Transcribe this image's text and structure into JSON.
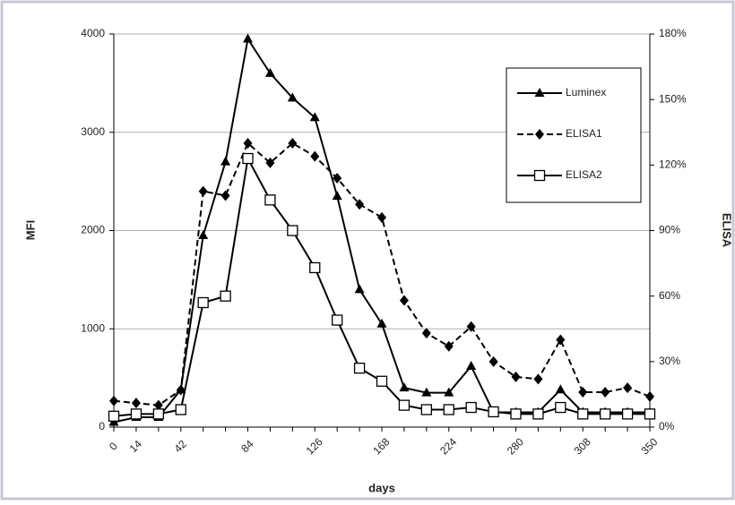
{
  "chart_data": {
    "type": "line",
    "x_label": "days",
    "y_label": "MFI",
    "y2_label": "ELISA",
    "categories": [
      "0",
      "14",
      null,
      "42",
      null,
      null,
      "84",
      null,
      null,
      "126",
      null,
      null,
      "168",
      null,
      null,
      "224",
      null,
      null,
      "280",
      null,
      null,
      "308",
      null,
      null,
      "350"
    ],
    "ylim": [
      0,
      4000
    ],
    "yticks": [
      0,
      1000,
      2000,
      3000,
      4000
    ],
    "y2lim": [
      0,
      180
    ],
    "y2ticks": [
      {
        "value": 0,
        "label": "0%"
      },
      {
        "value": 30,
        "label": "30%"
      },
      {
        "value": 60,
        "label": "60%"
      },
      {
        "value": 90,
        "label": "90%"
      },
      {
        "value": 120,
        "label": "120%"
      },
      {
        "value": 150,
        "label": "150%"
      },
      {
        "value": 180,
        "label": "180%"
      }
    ],
    "grid": true,
    "legend": "upper right",
    "series": [
      {
        "name": "Luminex",
        "color": "#000000",
        "marker": "triangle",
        "dash": "solid",
        "values": [
          50,
          100,
          100,
          380,
          1950,
          2700,
          3950,
          3600,
          3350,
          3150,
          2350,
          1400,
          1050,
          400,
          350,
          350,
          620,
          150,
          150,
          150,
          380,
          150,
          150,
          150,
          150
        ]
      },
      {
        "name": "ELISA1",
        "color": "#000000",
        "marker": "diamond",
        "dash": "dashed",
        "axis": "y2",
        "values": [
          12,
          11,
          10,
          17,
          108,
          106,
          130,
          121,
          130,
          124,
          114,
          102,
          96,
          58,
          43,
          37,
          46,
          30,
          23,
          22,
          40,
          16,
          16,
          18,
          14
        ]
      },
      {
        "name": "ELISA2",
        "color": "#000000",
        "marker": "square-open",
        "dash": "solid",
        "axis": "y2",
        "values": [
          5,
          6,
          6,
          8,
          57,
          60,
          123,
          104,
          90,
          73,
          49,
          27,
          21,
          10,
          8,
          8,
          9,
          7,
          6,
          6,
          9,
          6,
          6,
          6,
          6
        ]
      }
    ]
  }
}
